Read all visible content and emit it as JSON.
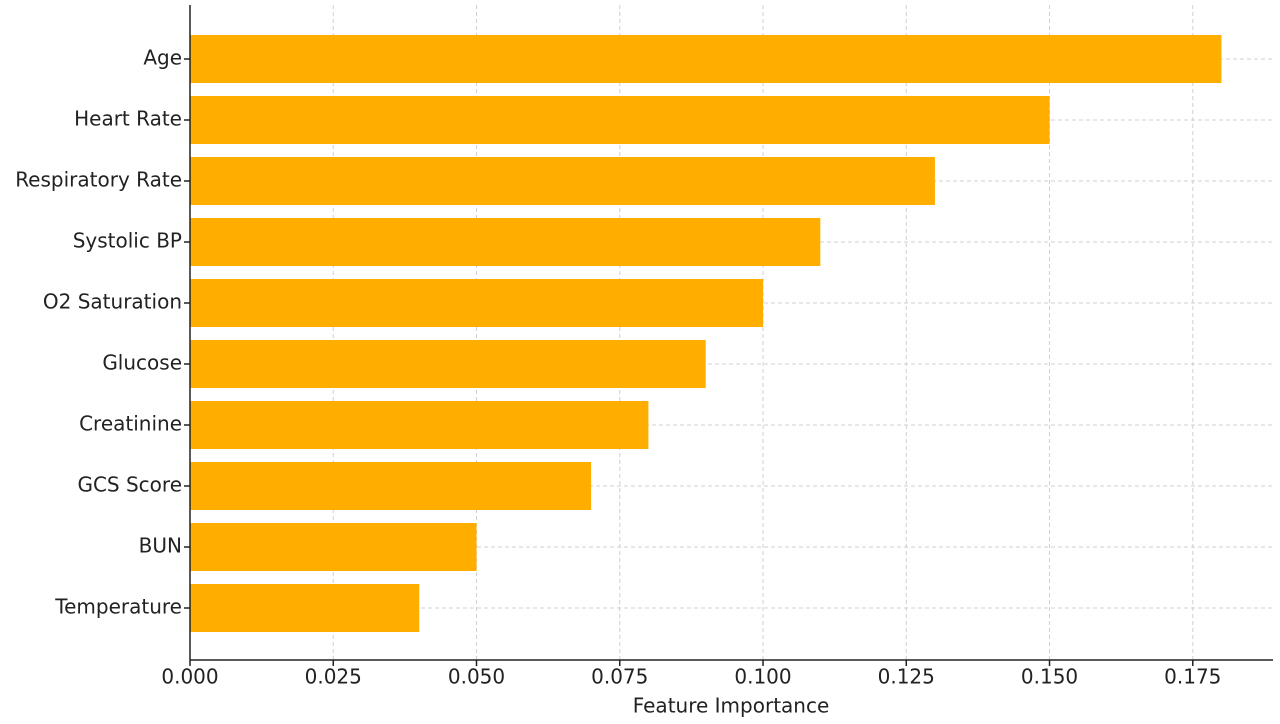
{
  "chart_data": {
    "type": "barh",
    "categories": [
      "Age",
      "Heart Rate",
      "Respiratory Rate",
      "Systolic BP",
      "O2 Saturation",
      "Glucose",
      "Creatinine",
      "GCS Score",
      "BUN",
      "Temperature"
    ],
    "values": [
      0.18,
      0.15,
      0.13,
      0.11,
      0.1,
      0.09,
      0.08,
      0.07,
      0.05,
      0.04
    ],
    "color": "#ffae00",
    "x_label": "Feature Importance",
    "xlim": [
      0,
      0.189
    ],
    "xticks": [
      {
        "value": 0,
        "label": "0.000"
      },
      {
        "value": 0.025,
        "label": "0.025"
      },
      {
        "value": 0.05,
        "label": "0.050"
      },
      {
        "value": 0.075,
        "label": "0.075"
      },
      {
        "value": 0.1,
        "label": "0.100"
      },
      {
        "value": 0.125,
        "label": "0.125"
      },
      {
        "value": 0.15,
        "label": "0.150"
      },
      {
        "value": 0.175,
        "label": "0.175"
      }
    ],
    "grid": true
  }
}
